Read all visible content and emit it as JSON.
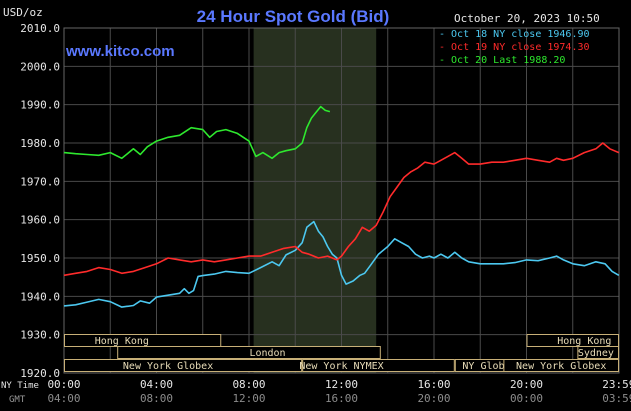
{
  "header": {
    "unit_label": "USD/oz",
    "title": "24 Hour Spot Gold (Bid)",
    "timestamp": "October 20, 2023 10:50",
    "watermark": "www.kitco.com"
  },
  "legend": [
    {
      "text": "- Oct 18 NY close 1946.90",
      "color": "#4cc8f0"
    },
    {
      "text": "- Oct 19 NY close 1974.30",
      "color": "#ff2b2b"
    },
    {
      "text": "- Oct 20 Last 1988.20",
      "color": "#2ee82e"
    }
  ],
  "sessions": {
    "hong_kong_1": "Hong Kong",
    "london": "London",
    "new_york_globex_1": "New York Globex",
    "new_york_nymex": "New York NYMEX",
    "ny_globex": "NY Globex",
    "hong_kong_2": "Hong Kong",
    "sydney": "Sydney",
    "new_york_globex_2": "New York Globex"
  },
  "axis": {
    "ny_time_label": "NY Time",
    "gmt_label": "GMT",
    "ny_ticks": [
      "00:00",
      "04:00",
      "08:00",
      "12:00",
      "16:00",
      "20:00",
      "23:59"
    ],
    "gmt_ticks": [
      "04:00",
      "08:00",
      "12:00",
      "16:00",
      "20:00",
      "00:00",
      "03:59"
    ]
  },
  "colors": {
    "background": "#000000",
    "grid": "#4a4a4a",
    "title": "#5a78ff",
    "watermark": "#5a78ff",
    "text": "#e6e6e6",
    "session_band": "#c8b078",
    "shade": "#27301f",
    "series_blue": "#4cc8f0",
    "series_red": "#ff2b2b",
    "series_green": "#2ee82e"
  },
  "chart_data": {
    "type": "line",
    "title": "24 Hour Spot Gold (Bid)",
    "ylabel": "USD/oz",
    "xlabel": "NY Time",
    "ylim": [
      1920,
      2010
    ],
    "yticks": [
      1920,
      1930,
      1940,
      1950,
      1960,
      1970,
      1980,
      1990,
      2000,
      2010
    ],
    "xlim_hours": [
      0,
      24
    ],
    "grid": true,
    "legend_position": "top-right",
    "series": [
      {
        "name": "Oct 18 NY close 1946.90",
        "color": "#4cc8f0",
        "points": [
          [
            0,
            1937.5
          ],
          [
            0.5,
            1937.8
          ],
          [
            1,
            1938.5
          ],
          [
            1.5,
            1939.2
          ],
          [
            2,
            1938.6
          ],
          [
            2.5,
            1937.2
          ],
          [
            3,
            1937.6
          ],
          [
            3.3,
            1938.8
          ],
          [
            3.7,
            1938.2
          ],
          [
            4,
            1939.8
          ],
          [
            4.5,
            1940.3
          ],
          [
            5,
            1940.8
          ],
          [
            5.2,
            1942.0
          ],
          [
            5.4,
            1940.8
          ],
          [
            5.6,
            1941.5
          ],
          [
            5.8,
            1945.2
          ],
          [
            6,
            1945.4
          ],
          [
            6.5,
            1945.8
          ],
          [
            7,
            1946.5
          ],
          [
            7.5,
            1946.2
          ],
          [
            8,
            1946.0
          ],
          [
            8.5,
            1947.5
          ],
          [
            9,
            1949.0
          ],
          [
            9.3,
            1948.0
          ],
          [
            9.6,
            1950.8
          ],
          [
            10,
            1952.0
          ],
          [
            10.3,
            1954.0
          ],
          [
            10.5,
            1958.0
          ],
          [
            10.8,
            1959.5
          ],
          [
            11,
            1957.0
          ],
          [
            11.2,
            1955.5
          ],
          [
            11.4,
            1953.0
          ],
          [
            11.6,
            1951.0
          ],
          [
            11.8,
            1950.0
          ],
          [
            12,
            1945.5
          ],
          [
            12.2,
            1943.2
          ],
          [
            12.5,
            1944.0
          ],
          [
            12.8,
            1945.5
          ],
          [
            13,
            1946.0
          ],
          [
            13.3,
            1948.5
          ],
          [
            13.6,
            1951.0
          ],
          [
            14,
            1953.0
          ],
          [
            14.3,
            1955.0
          ],
          [
            14.6,
            1954.0
          ],
          [
            14.9,
            1953.0
          ],
          [
            15.2,
            1951.0
          ],
          [
            15.5,
            1950.0
          ],
          [
            15.8,
            1950.5
          ],
          [
            16,
            1950.0
          ],
          [
            16.3,
            1951.0
          ],
          [
            16.6,
            1950.0
          ],
          [
            16.9,
            1951.5
          ],
          [
            17.2,
            1950.0
          ],
          [
            17.5,
            1949.0
          ],
          [
            18,
            1948.5
          ],
          [
            18.5,
            1948.5
          ],
          [
            19,
            1948.5
          ],
          [
            19.5,
            1948.8
          ],
          [
            20,
            1949.5
          ],
          [
            20.5,
            1949.3
          ],
          [
            21,
            1950.0
          ],
          [
            21.3,
            1950.5
          ],
          [
            21.6,
            1949.5
          ],
          [
            22,
            1948.5
          ],
          [
            22.5,
            1948.0
          ],
          [
            23,
            1949.0
          ],
          [
            23.4,
            1948.5
          ],
          [
            23.7,
            1946.5
          ],
          [
            23.99,
            1945.5
          ]
        ]
      },
      {
        "name": "Oct 19 NY close 1974.30",
        "color": "#ff2b2b",
        "points": [
          [
            0,
            1945.5
          ],
          [
            0.5,
            1946.0
          ],
          [
            1,
            1946.5
          ],
          [
            1.5,
            1947.5
          ],
          [
            2,
            1947.0
          ],
          [
            2.5,
            1946.0
          ],
          [
            3,
            1946.5
          ],
          [
            3.5,
            1947.5
          ],
          [
            4,
            1948.5
          ],
          [
            4.5,
            1950.0
          ],
          [
            5,
            1949.5
          ],
          [
            5.5,
            1949.0
          ],
          [
            6,
            1949.5
          ],
          [
            6.5,
            1949.0
          ],
          [
            7,
            1949.5
          ],
          [
            7.5,
            1950.0
          ],
          [
            8,
            1950.5
          ],
          [
            8.5,
            1950.5
          ],
          [
            9,
            1951.5
          ],
          [
            9.5,
            1952.5
          ],
          [
            10,
            1953.0
          ],
          [
            10.3,
            1951.5
          ],
          [
            10.6,
            1951.0
          ],
          [
            11,
            1950.0
          ],
          [
            11.4,
            1950.5
          ],
          [
            11.8,
            1949.5
          ],
          [
            12,
            1950.5
          ],
          [
            12.3,
            1953.0
          ],
          [
            12.6,
            1955.0
          ],
          [
            12.9,
            1958.0
          ],
          [
            13.2,
            1957.0
          ],
          [
            13.5,
            1958.5
          ],
          [
            13.8,
            1962.0
          ],
          [
            14.1,
            1966.0
          ],
          [
            14.4,
            1968.5
          ],
          [
            14.7,
            1971.0
          ],
          [
            15,
            1972.5
          ],
          [
            15.3,
            1973.5
          ],
          [
            15.6,
            1975.0
          ],
          [
            16,
            1974.5
          ],
          [
            16.3,
            1975.5
          ],
          [
            16.6,
            1976.5
          ],
          [
            16.9,
            1977.5
          ],
          [
            17.2,
            1976.0
          ],
          [
            17.5,
            1974.5
          ],
          [
            18,
            1974.5
          ],
          [
            18.5,
            1975.0
          ],
          [
            19,
            1975.0
          ],
          [
            19.5,
            1975.5
          ],
          [
            20,
            1976.0
          ],
          [
            20.5,
            1975.5
          ],
          [
            21,
            1975.0
          ],
          [
            21.3,
            1976.0
          ],
          [
            21.6,
            1975.5
          ],
          [
            22,
            1976.0
          ],
          [
            22.5,
            1977.5
          ],
          [
            23,
            1978.5
          ],
          [
            23.3,
            1980.0
          ],
          [
            23.6,
            1978.5
          ],
          [
            23.99,
            1977.5
          ]
        ]
      },
      {
        "name": "Oct 20 Last 1988.20",
        "color": "#2ee82e",
        "points": [
          [
            0,
            1977.5
          ],
          [
            0.5,
            1977.2
          ],
          [
            1,
            1977.0
          ],
          [
            1.5,
            1976.8
          ],
          [
            2,
            1977.5
          ],
          [
            2.5,
            1976.0
          ],
          [
            3,
            1978.5
          ],
          [
            3.3,
            1977.0
          ],
          [
            3.6,
            1979.0
          ],
          [
            4,
            1980.5
          ],
          [
            4.5,
            1981.5
          ],
          [
            5,
            1982.0
          ],
          [
            5.5,
            1984.0
          ],
          [
            6,
            1983.5
          ],
          [
            6.3,
            1981.5
          ],
          [
            6.6,
            1983.0
          ],
          [
            7,
            1983.5
          ],
          [
            7.5,
            1982.5
          ],
          [
            8,
            1980.5
          ],
          [
            8.3,
            1976.5
          ],
          [
            8.6,
            1977.5
          ],
          [
            9,
            1976.0
          ],
          [
            9.3,
            1977.5
          ],
          [
            9.6,
            1978.0
          ],
          [
            10,
            1978.5
          ],
          [
            10.3,
            1980.0
          ],
          [
            10.5,
            1984.0
          ],
          [
            10.7,
            1986.5
          ],
          [
            10.9,
            1988.0
          ],
          [
            11.1,
            1989.5
          ],
          [
            11.3,
            1988.5
          ],
          [
            11.5,
            1988.2
          ]
        ]
      }
    ]
  }
}
